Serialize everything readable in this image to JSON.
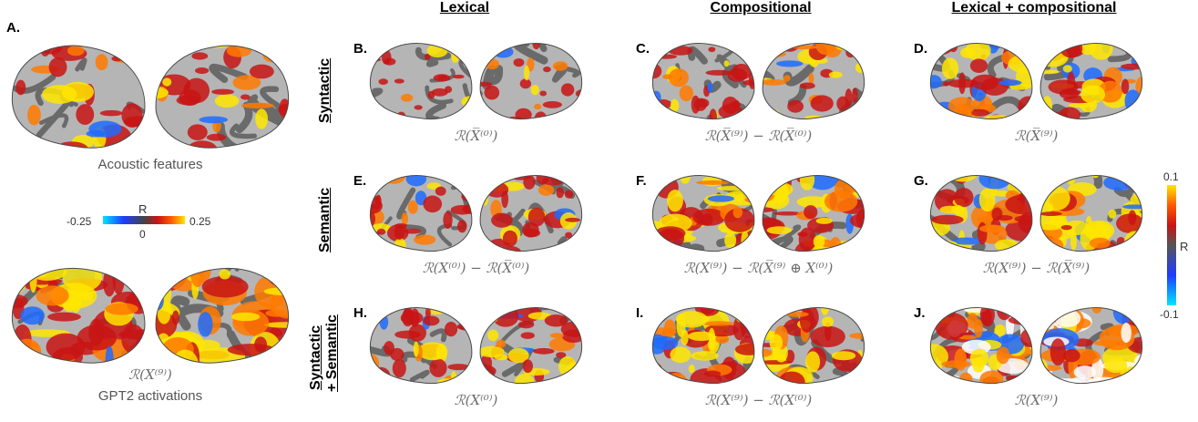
{
  "columns": [
    "Lexical",
    "Compositional",
    "Lexical + compositional"
  ],
  "rows": [
    "Syntactic",
    "Semantic",
    "Syntactic",
    "+ Semantic"
  ],
  "panel_A": {
    "letter": "A.",
    "top_caption": "Acoustic features",
    "bottom_formula": "ℛ(X⁽⁹⁾)",
    "bottom_caption": "GPT2 activations",
    "colorbar": {
      "title": "R",
      "min": "-0.25",
      "mid": "0",
      "max": "0.25"
    }
  },
  "panels": [
    {
      "letter": "B.",
      "formula": "ℛ(X̅⁽⁰⁾)",
      "intensity": 0.2
    },
    {
      "letter": "C.",
      "formula": "ℛ(X̅⁽⁹⁾) − ℛ(X̅⁽⁰⁾)",
      "intensity": 0.45
    },
    {
      "letter": "D.",
      "formula": "ℛ(X̅⁽⁹⁾)",
      "intensity": 0.7
    },
    {
      "letter": "E.",
      "formula": "ℛ(X⁽⁰⁾) − ℛ(X̅⁽⁰⁾)",
      "intensity": 0.45
    },
    {
      "letter": "F.",
      "formula": "ℛ(X⁽⁹⁾) − ℛ(X̅⁽⁹⁾ ⊕ X⁽⁰⁾)",
      "intensity": 0.8
    },
    {
      "letter": "G.",
      "formula": "ℛ(X⁽⁹⁾) − ℛ(X̅⁽⁹⁾)",
      "intensity": 0.85
    },
    {
      "letter": "H.",
      "formula": "ℛ(X⁽⁰⁾)",
      "intensity": 0.55
    },
    {
      "letter": "I.",
      "formula": "ℛ(X⁽⁹⁾) − ℛ(X⁽⁰⁾)",
      "intensity": 0.8
    },
    {
      "letter": "J.",
      "formula": "ℛ(X⁽⁹⁾)",
      "intensity": 1.0
    }
  ],
  "colorbar_right": {
    "title": "R",
    "max": "0.1",
    "min": "-0.1"
  },
  "colors": {
    "hot_low": "#c81414",
    "hot_high": "#ffe600",
    "cold": "#1e6bff",
    "brain_dark": "#6a6a6a",
    "brain_light": "#b5b5b5"
  }
}
